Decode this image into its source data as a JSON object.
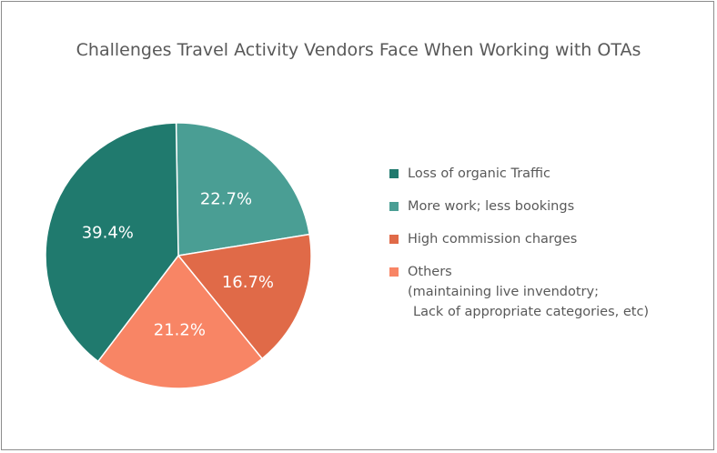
{
  "chart_data": {
    "type": "pie",
    "title": "Challenges Travel Activity Vendors Face When Working with OTAs",
    "slices": [
      {
        "label": "More work; less bookings",
        "value": 22.7,
        "value_label": "22.7%",
        "color": "#4a9e94"
      },
      {
        "label": "High commission charges",
        "value": 16.7,
        "value_label": "16.7%",
        "color": "#e06a48"
      },
      {
        "label": "Others",
        "label_lines": [
          "Others",
          "(maintaining live invendotry;",
          "Lack of appropriate categories, etc)"
        ],
        "value": 21.2,
        "value_label": "21.2%",
        "color": "#f88565"
      },
      {
        "label": "Loss of organic Traffic",
        "value": 39.4,
        "value_label": "39.4%",
        "color": "#207a6e"
      }
    ],
    "legend": {
      "placement": "right",
      "entries": [
        {
          "lines": [
            "Loss of organic Traffic"
          ],
          "color": "#207a6e"
        },
        {
          "lines": [
            "More work; less bookings"
          ],
          "color": "#4a9e94"
        },
        {
          "lines": [
            "High commission charges"
          ],
          "color": "#e06a48"
        },
        {
          "lines": [
            "Others",
            "(maintaining live invendotry;",
            "Lack of appropriate categories, etc)"
          ],
          "color": "#f88565"
        }
      ]
    }
  }
}
